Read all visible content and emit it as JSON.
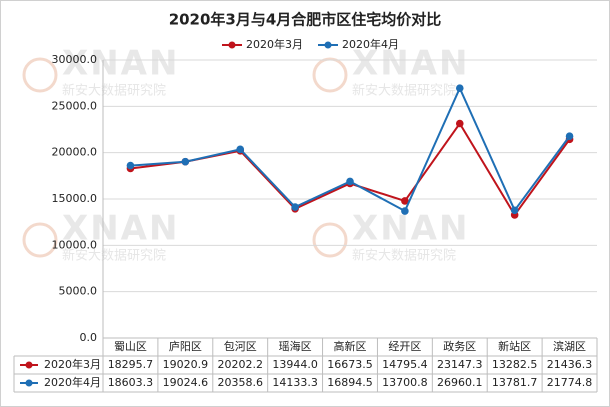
{
  "chart_data": {
    "type": "line",
    "title": "2020年3月与4月合肥市区住宅均价对比",
    "categories": [
      "蜀山区",
      "庐阳区",
      "包河区",
      "瑶海区",
      "高新区",
      "经开区",
      "政务区",
      "新站区",
      "滨湖区"
    ],
    "series": [
      {
        "name": "2020年3月",
        "color": "#c0141c",
        "values": [
          18295.7,
          19020.9,
          20202.2,
          13944.0,
          16673.5,
          14795.4,
          23147.3,
          13282.5,
          21436.3
        ],
        "value_labels": [
          "18295.7",
          "19020.9",
          "20202.2",
          "13944.0",
          "16673.5",
          "14795.4",
          "23147.3",
          "13282.5",
          "21436.3"
        ]
      },
      {
        "name": "2020年4月",
        "color": "#1f6fb5",
        "values": [
          18603.3,
          19024.6,
          20358.6,
          14133.3,
          16894.5,
          13700.8,
          26960.1,
          13781.7,
          21774.8
        ],
        "value_labels": [
          "18603.3",
          "19024.6",
          "20358.6",
          "14133.3",
          "16894.5",
          "13700.8",
          "26960.1",
          "13781.7",
          "21774.8"
        ]
      }
    ],
    "ylim": [
      0,
      30000
    ],
    "yticks": [
      {
        "value": 0,
        "label": "0.0"
      },
      {
        "value": 5000,
        "label": "5000.0"
      },
      {
        "value": 10000,
        "label": "10000.0"
      },
      {
        "value": 15000,
        "label": "15000.0"
      },
      {
        "value": 20000,
        "label": "20000.0"
      },
      {
        "value": 25000,
        "label": "25000.0"
      },
      {
        "value": 30000,
        "label": "30000.0"
      }
    ],
    "grid": true,
    "legend": "top",
    "watermark": {
      "logo": "XNAN",
      "text": "新安大数据研究院"
    }
  }
}
